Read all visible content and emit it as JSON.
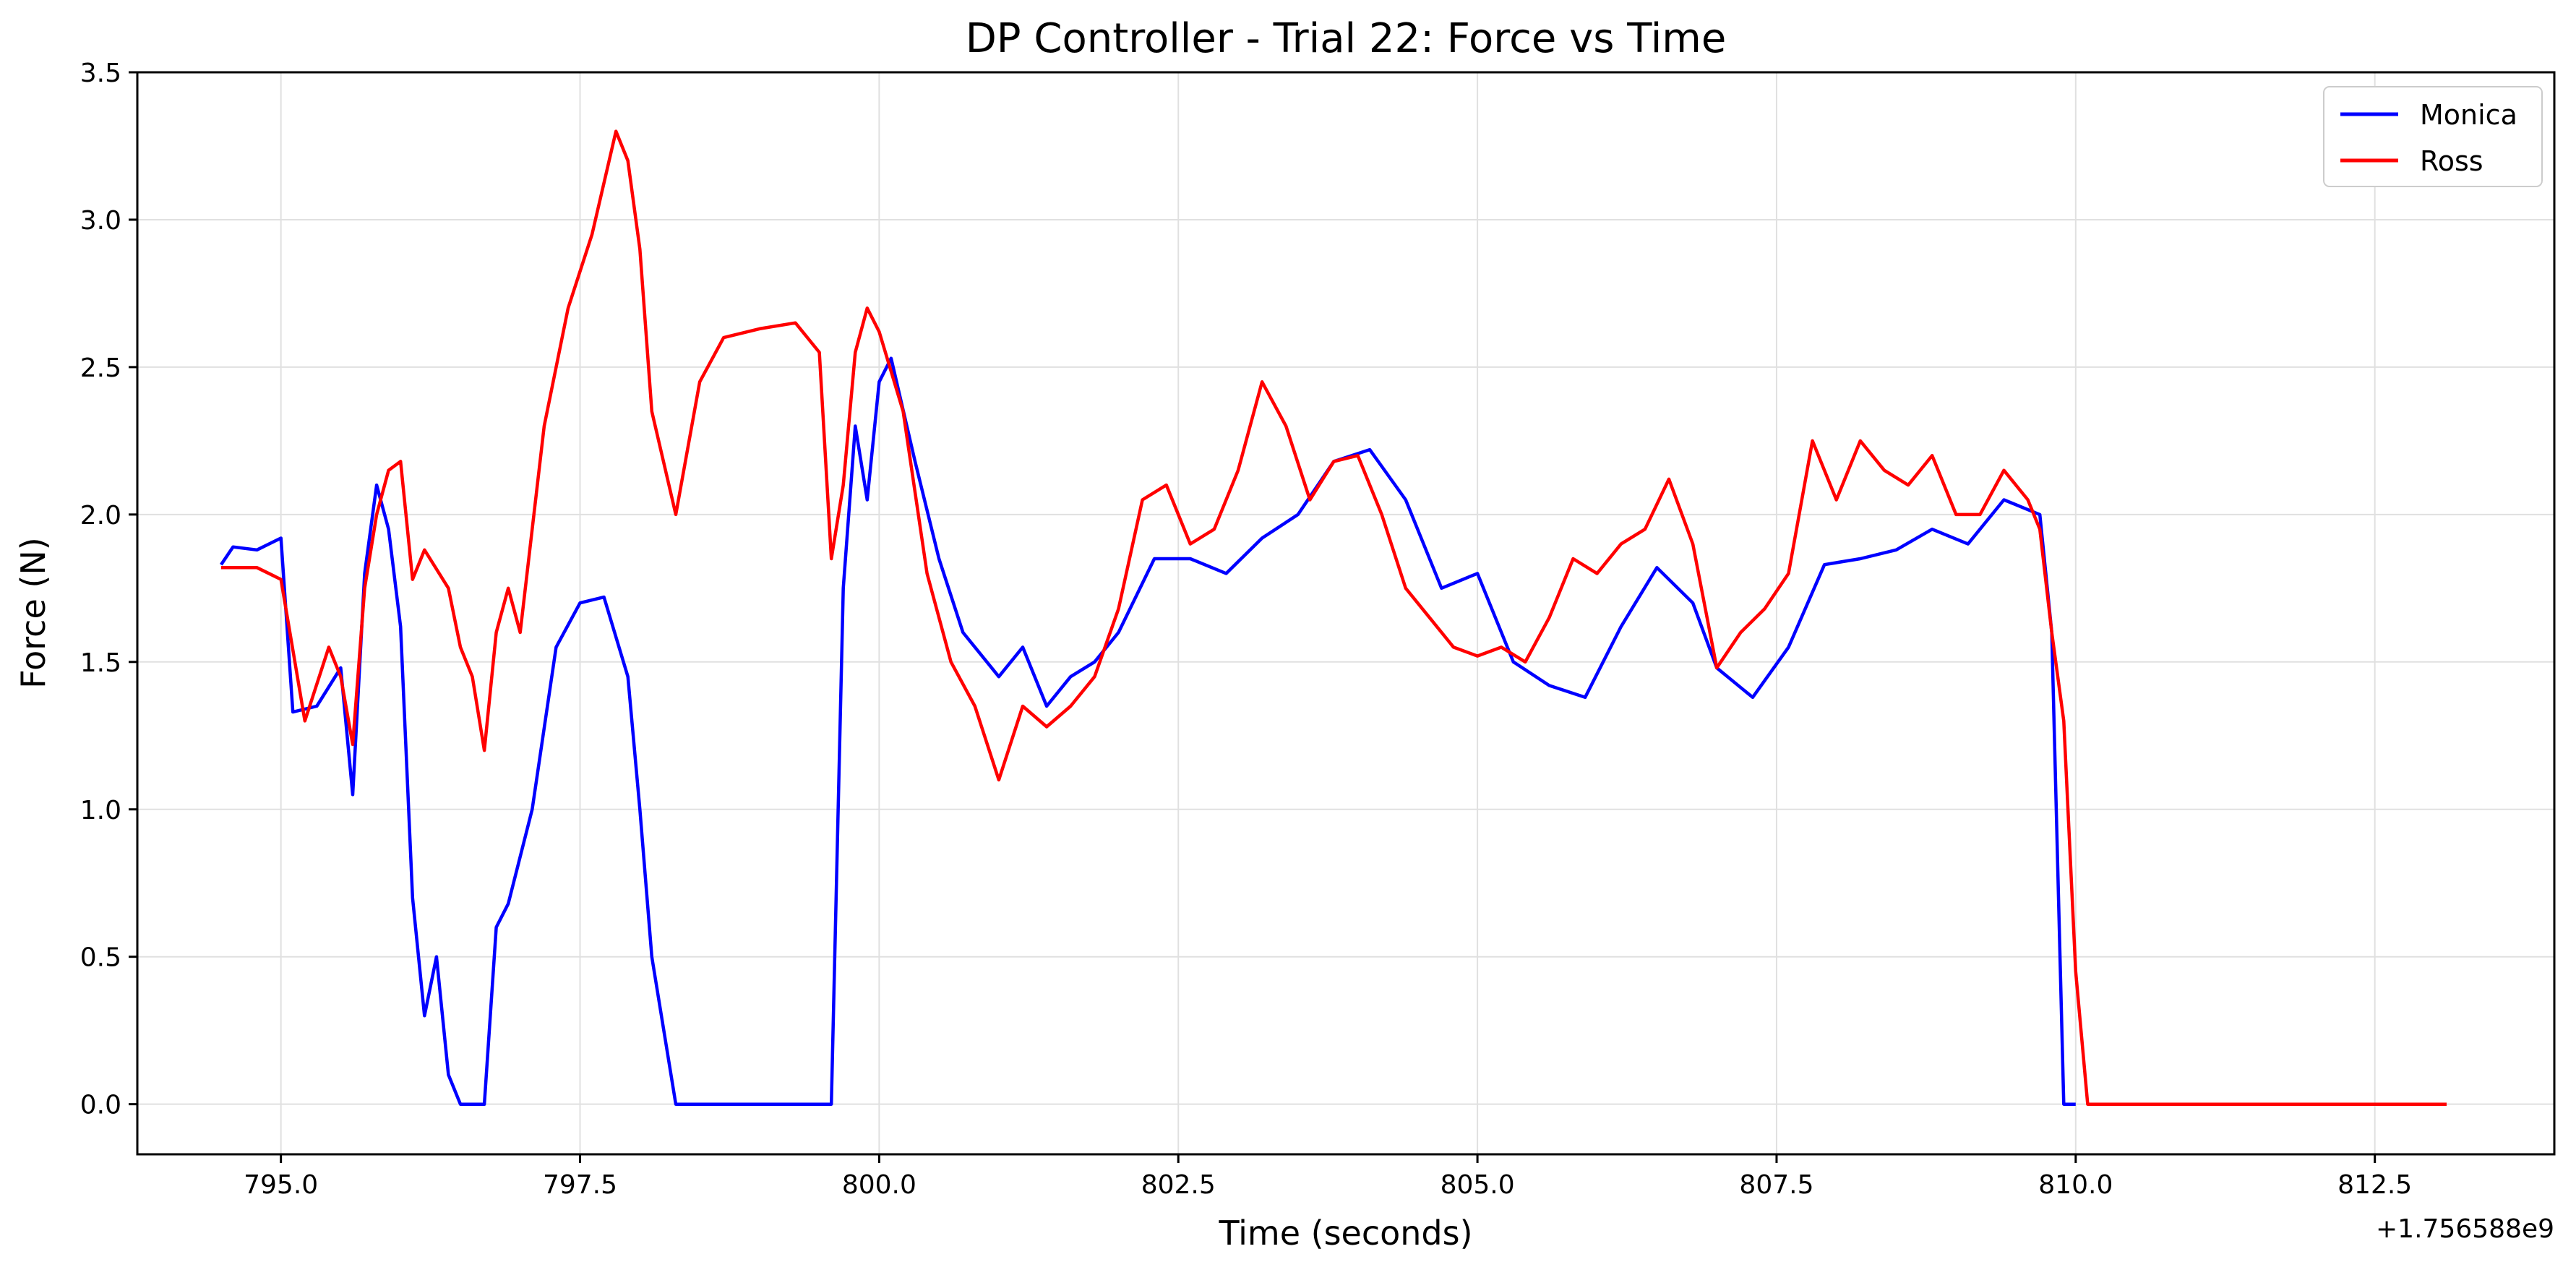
{
  "chart_data": {
    "type": "line",
    "title": "DP Controller - Trial 22: Force vs Time",
    "xlabel": "Time (seconds)",
    "ylabel": "Force (N)",
    "x_offset_label": "+1.756588e9",
    "xlim": [
      793.8,
      814.0
    ],
    "ylim": [
      -0.17,
      3.5
    ],
    "xticks": [
      795.0,
      797.5,
      800.0,
      802.5,
      805.0,
      807.5,
      810.0,
      812.5
    ],
    "xtick_labels": [
      "795.0",
      "797.5",
      "800.0",
      "802.5",
      "805.0",
      "807.5",
      "810.0",
      "812.5"
    ],
    "yticks": [
      0.0,
      0.5,
      1.0,
      1.5,
      2.0,
      2.5,
      3.0,
      3.5
    ],
    "ytick_labels": [
      "0.0",
      "0.5",
      "1.0",
      "1.5",
      "2.0",
      "2.5",
      "3.0",
      "3.5"
    ],
    "grid": true,
    "legend_position": "top-right",
    "series": [
      {
        "name": "Monica",
        "color": "#0000ff",
        "x": [
          794.5,
          794.6,
          794.8,
          794.9,
          795.0,
          795.1,
          795.3,
          795.5,
          795.6,
          795.7,
          795.8,
          795.9,
          796.0,
          796.1,
          796.2,
          796.3,
          796.4,
          796.5,
          796.7,
          796.8,
          796.9,
          797.1,
          797.3,
          797.5,
          797.7,
          797.9,
          798.0,
          798.1,
          798.3,
          799.0,
          799.6,
          799.7,
          799.8,
          799.9,
          800.0,
          800.1,
          800.3,
          800.5,
          800.7,
          801.0,
          801.2,
          801.4,
          801.6,
          801.8,
          802.0,
          802.3,
          802.6,
          802.9,
          803.2,
          803.5,
          803.8,
          804.1,
          804.4,
          804.7,
          805.0,
          805.3,
          805.6,
          805.9,
          806.2,
          806.5,
          806.8,
          807.0,
          807.3,
          807.6,
          807.9,
          808.2,
          808.5,
          808.8,
          809.1,
          809.4,
          809.7,
          809.8,
          809.9,
          810.0
        ],
        "y": [
          1.83,
          1.89,
          1.88,
          1.9,
          1.92,
          1.33,
          1.35,
          1.48,
          1.05,
          1.8,
          2.1,
          1.95,
          1.62,
          0.7,
          0.3,
          0.5,
          0.1,
          0.0,
          0.0,
          0.6,
          0.68,
          1.0,
          1.55,
          1.7,
          1.72,
          1.45,
          1.0,
          0.5,
          0.0,
          0.0,
          0.0,
          1.75,
          2.3,
          2.05,
          2.45,
          2.53,
          2.18,
          1.85,
          1.6,
          1.45,
          1.55,
          1.35,
          1.45,
          1.5,
          1.6,
          1.85,
          1.85,
          1.8,
          1.92,
          2.0,
          2.18,
          2.22,
          2.05,
          1.75,
          1.8,
          1.5,
          1.42,
          1.38,
          1.62,
          1.82,
          1.7,
          1.48,
          1.38,
          1.55,
          1.83,
          1.85,
          1.88,
          1.95,
          1.9,
          2.05,
          2.0,
          1.6,
          0.0,
          0.0
        ]
      },
      {
        "name": "Ross",
        "color": "#ff0000",
        "x": [
          794.5,
          794.8,
          795.0,
          795.2,
          795.4,
          795.5,
          795.6,
          795.7,
          795.8,
          795.9,
          796.0,
          796.1,
          796.2,
          796.4,
          796.5,
          796.6,
          796.7,
          796.8,
          796.9,
          797.0,
          797.2,
          797.4,
          797.6,
          797.8,
          797.9,
          798.0,
          798.1,
          798.3,
          798.5,
          798.7,
          799.0,
          799.3,
          799.5,
          799.6,
          799.7,
          799.8,
          799.9,
          800.0,
          800.2,
          800.4,
          800.6,
          800.8,
          801.0,
          801.2,
          801.4,
          801.6,
          801.8,
          802.0,
          802.2,
          802.4,
          802.6,
          802.8,
          803.0,
          803.2,
          803.4,
          803.6,
          803.8,
          804.0,
          804.2,
          804.4,
          804.6,
          804.8,
          805.0,
          805.2,
          805.4,
          805.6,
          805.8,
          806.0,
          806.2,
          806.4,
          806.6,
          806.8,
          807.0,
          807.2,
          807.4,
          807.6,
          807.8,
          808.0,
          808.2,
          808.4,
          808.6,
          808.8,
          809.0,
          809.2,
          809.4,
          809.6,
          809.7,
          809.8,
          809.9,
          810.0,
          810.1,
          810.2,
          813.1
        ],
        "y": [
          1.82,
          1.82,
          1.78,
          1.3,
          1.55,
          1.45,
          1.22,
          1.75,
          2.0,
          2.15,
          2.18,
          1.78,
          1.88,
          1.75,
          1.55,
          1.45,
          1.2,
          1.6,
          1.75,
          1.6,
          2.3,
          2.7,
          2.95,
          3.3,
          3.2,
          2.9,
          2.35,
          2.0,
          2.45,
          2.6,
          2.63,
          2.65,
          2.55,
          1.85,
          2.1,
          2.55,
          2.7,
          2.62,
          2.35,
          1.8,
          1.5,
          1.35,
          1.1,
          1.35,
          1.28,
          1.35,
          1.45,
          1.68,
          2.05,
          2.1,
          1.9,
          1.95,
          2.15,
          2.45,
          2.3,
          2.05,
          2.18,
          2.2,
          2.0,
          1.75,
          1.65,
          1.55,
          1.52,
          1.55,
          1.5,
          1.65,
          1.85,
          1.8,
          1.9,
          1.95,
          2.12,
          1.9,
          1.48,
          1.6,
          1.68,
          1.8,
          2.25,
          2.05,
          2.25,
          2.15,
          2.1,
          2.2,
          2.0,
          2.0,
          2.15,
          2.05,
          1.95,
          1.6,
          1.3,
          0.45,
          0.0,
          0.0,
          0.0
        ]
      }
    ]
  }
}
